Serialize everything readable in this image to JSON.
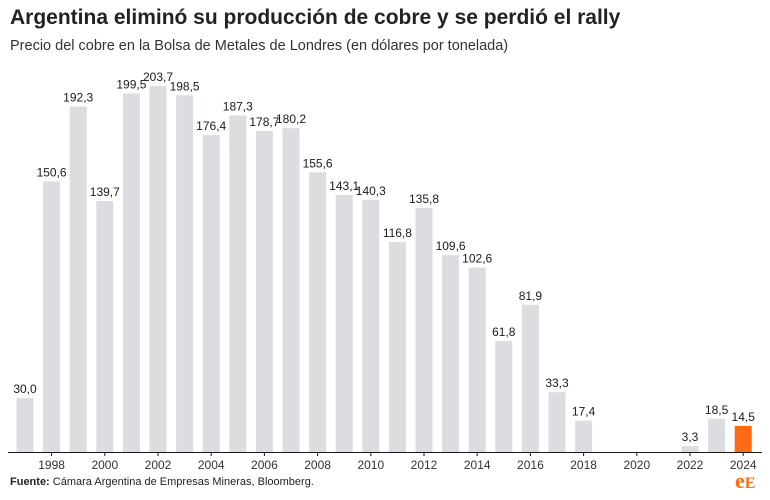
{
  "header": {
    "title": "Argentina eliminó su producción de cobre y se perdió el rally",
    "subtitle": "Precio del cobre en la Bolsa de Metales de Londres (en dólares por tonelada)"
  },
  "footer": {
    "source_label": "Fuente:",
    "source_text": "Cámara Argentina de Empresas Mineras, Bloomberg.",
    "logo_text": "eE"
  },
  "colors": {
    "bar": "#dcdde0",
    "highlight": "#ff6a13",
    "axis": "#1a1a1a",
    "text": "#1a1a1a"
  },
  "chart_data": {
    "type": "bar",
    "title": "Argentina eliminó su producción de cobre y se perdió el rally",
    "subtitle": "Precio del cobre en la Bolsa de Metales de Londres (en dólares por tonelada)",
    "xlabel": "",
    "ylabel": "",
    "categories": [
      "1997",
      "1998",
      "1999",
      "2000",
      "2001",
      "2002",
      "2003",
      "2004",
      "2005",
      "2006",
      "2007",
      "2008",
      "2009",
      "2010",
      "2011",
      "2012",
      "2013",
      "2014",
      "2015",
      "2016",
      "2017",
      "2018",
      "2019",
      "2020",
      "2021",
      "2022",
      "2023",
      "2024"
    ],
    "values": [
      30.0,
      150.6,
      192.3,
      139.7,
      199.5,
      203.7,
      198.5,
      176.4,
      187.3,
      178.7,
      180.2,
      155.6,
      143.1,
      140.3,
      116.8,
      135.8,
      109.6,
      102.6,
      61.8,
      81.9,
      33.3,
      17.4,
      null,
      null,
      null,
      3.3,
      18.5,
      14.5
    ],
    "data_labels": [
      "30,0",
      "150,6",
      "192,3",
      "139,7",
      "199,5",
      "203,7",
      "198,5",
      "176,4",
      "187,3",
      "178,7",
      "180,2",
      "155,6",
      "143,1",
      "140,3",
      "116,8",
      "135,8",
      "109,6",
      "102,6",
      "61,8",
      "81,9",
      "33,3",
      "17,4",
      "",
      "",
      "",
      "3,3",
      "18,5",
      "14,5"
    ],
    "x_tick_labels": [
      "1998",
      "2000",
      "2002",
      "2004",
      "2006",
      "2008",
      "2010",
      "2012",
      "2014",
      "2016",
      "2018",
      "2020",
      "2022",
      "2024"
    ],
    "highlight_category": "2024",
    "ylim": [
      0,
      203.7
    ],
    "grid": false,
    "legend": "none"
  }
}
